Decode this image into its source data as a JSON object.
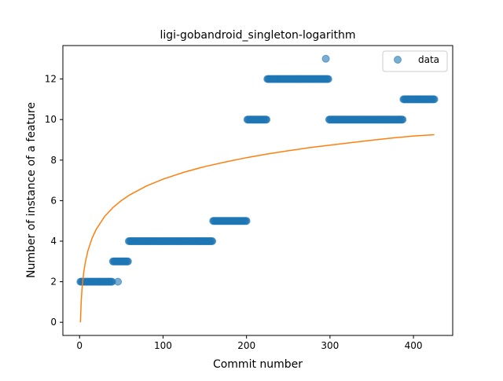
{
  "chart_data": {
    "type": "scatter",
    "title": "ligi-gobandroid_singleton-logarithm",
    "xlabel": "Commit number",
    "ylabel": "Number of instance of a feature",
    "xlim": [
      -20,
      447
    ],
    "ylim": [
      -0.65,
      13.65
    ],
    "xticks": [
      0,
      100,
      200,
      300,
      400
    ],
    "yticks": [
      0,
      2,
      4,
      6,
      8,
      10,
      12
    ],
    "xtick_labels": [
      "0",
      "100",
      "200",
      "300",
      "400"
    ],
    "ytick_labels": [
      "0",
      "2",
      "4",
      "6",
      "8",
      "10",
      "12"
    ],
    "legend": {
      "entries": [
        "data"
      ],
      "placement": "top-right"
    },
    "grid": false,
    "colors": {
      "data": "#1f77b4",
      "fit": "#ff7f0e"
    },
    "series": [
      {
        "name": "data",
        "kind": "scatter",
        "segments": [
          {
            "x_start": 1,
            "x_end": 39,
            "y": 2
          },
          {
            "x_start": 40,
            "x_end": 58,
            "y": 3
          },
          {
            "x_start": 59,
            "x_end": 159,
            "y": 4
          },
          {
            "x_start": 160,
            "x_end": 200,
            "y": 5
          },
          {
            "x_start": 201,
            "x_end": 224,
            "y": 10
          },
          {
            "x_start": 225,
            "x_end": 298,
            "y": 12
          },
          {
            "x_start": 299,
            "x_end": 387,
            "y": 10
          },
          {
            "x_start": 388,
            "x_end": 425,
            "y": 11
          }
        ],
        "points": [
          {
            "x": 46,
            "y": 2
          },
          {
            "x": 295,
            "y": 13
          }
        ]
      },
      {
        "kind": "line",
        "model": "logarithmic",
        "points": [
          [
            1,
            0.0
          ],
          [
            2,
            1.06
          ],
          [
            3,
            1.69
          ],
          [
            5,
            2.47
          ],
          [
            7,
            2.98
          ],
          [
            10,
            3.53
          ],
          [
            15,
            4.15
          ],
          [
            20,
            4.59
          ],
          [
            30,
            5.22
          ],
          [
            40,
            5.66
          ],
          [
            50,
            6.0
          ],
          [
            60,
            6.28
          ],
          [
            80,
            6.72
          ],
          [
            100,
            7.06
          ],
          [
            125,
            7.4
          ],
          [
            150,
            7.68
          ],
          [
            175,
            7.91
          ],
          [
            200,
            8.12
          ],
          [
            225,
            8.3
          ],
          [
            250,
            8.46
          ],
          [
            275,
            8.61
          ],
          [
            300,
            8.74
          ],
          [
            325,
            8.86
          ],
          [
            350,
            8.98
          ],
          [
            375,
            9.09
          ],
          [
            400,
            9.19
          ],
          [
            425,
            9.25
          ]
        ]
      }
    ]
  }
}
